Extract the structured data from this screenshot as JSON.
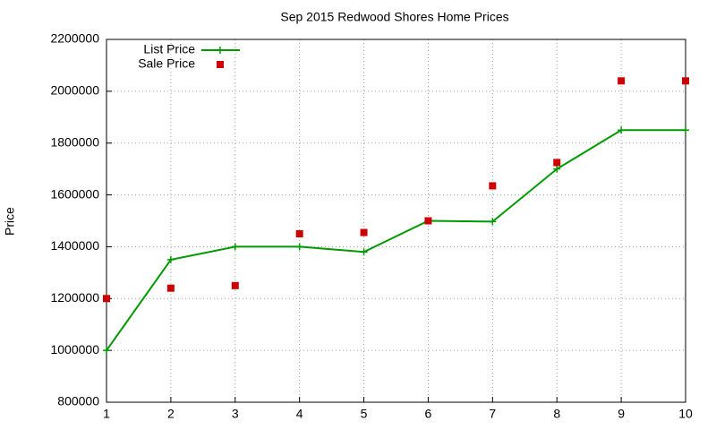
{
  "chart_data": {
    "type": "line",
    "title": "Sep 2015 Redwood Shores Home Prices",
    "y_label": "Price",
    "x": [
      1,
      2,
      3,
      4,
      5,
      6,
      7,
      8,
      9,
      10
    ],
    "series": [
      {
        "name": "List Price",
        "color": "#009900",
        "style": "linespoints",
        "values": [
          1000000,
          1350000,
          1400000,
          1400000,
          1380000,
          1500000,
          1497000,
          1700000,
          1850000,
          1850000
        ]
      },
      {
        "name": "Sale Price",
        "color": "#cc0000",
        "style": "points",
        "values": [
          1200000,
          1240000,
          1250000,
          1450000,
          1455000,
          1500000,
          1635000,
          1725000,
          2040000,
          2040000
        ]
      }
    ],
    "xlim": [
      1,
      10
    ],
    "xticks": [
      1,
      2,
      3,
      4,
      5,
      6,
      7,
      8,
      9,
      10
    ],
    "ylim": [
      800000,
      2200000
    ],
    "yticks": [
      800000,
      1000000,
      1200000,
      1400000,
      1600000,
      1800000,
      2000000,
      2200000
    ],
    "grid": true,
    "legend": "top-left"
  }
}
